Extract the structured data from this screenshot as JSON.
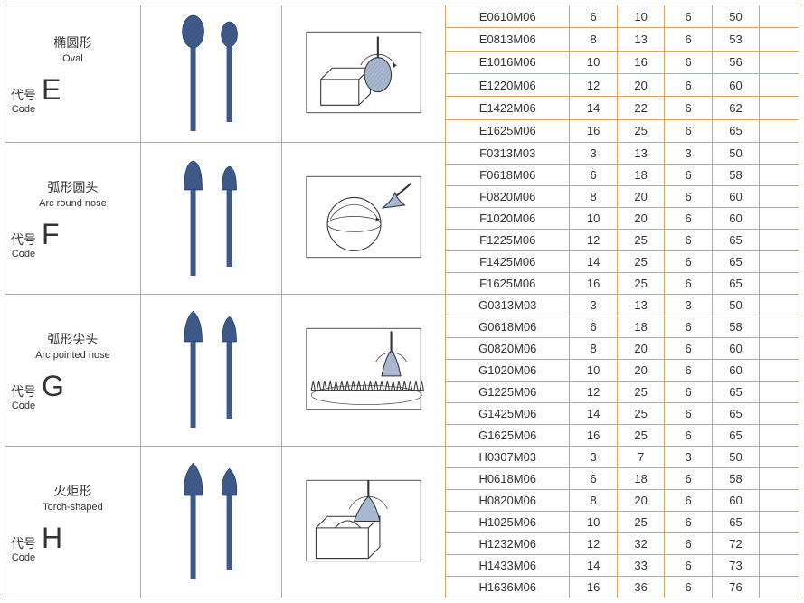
{
  "groups": [
    {
      "cn_name": "椭圆形",
      "en_name": "Oval",
      "code_label_cn": "代号",
      "code_label_en": "Code",
      "code": "E",
      "shape": "oval",
      "diagram": "block-rotate",
      "rows": [
        {
          "model": "E0610M06",
          "c1": "6",
          "c2": "10",
          "c3": "6",
          "c4": "50"
        },
        {
          "model": "E0813M06",
          "c1": "8",
          "c2": "13",
          "c3": "6",
          "c4": "53"
        },
        {
          "model": "E1016M06",
          "c1": "10",
          "c2": "16",
          "c3": "6",
          "c4": "56"
        },
        {
          "model": "E1220M06",
          "c1": "12",
          "c2": "20",
          "c3": "6",
          "c4": "60"
        },
        {
          "model": "E1422M06",
          "c1": "14",
          "c2": "22",
          "c3": "6",
          "c4": "62"
        },
        {
          "model": "E1625M06",
          "c1": "16",
          "c2": "25",
          "c3": "6",
          "c4": "65"
        }
      ]
    },
    {
      "cn_name": "弧形圆头",
      "en_name": "Arc round nose",
      "code_label_cn": "代号",
      "code_label_en": "Code",
      "code": "F",
      "shape": "arc-round",
      "diagram": "sphere",
      "rows": [
        {
          "model": "F0313M03",
          "c1": "3",
          "c2": "13",
          "c3": "3",
          "c4": "50"
        },
        {
          "model": "F0618M06",
          "c1": "6",
          "c2": "18",
          "c3": "6",
          "c4": "58"
        },
        {
          "model": "F0820M06",
          "c1": "8",
          "c2": "20",
          "c3": "6",
          "c4": "60"
        },
        {
          "model": "F1020M06",
          "c1": "10",
          "c2": "20",
          "c3": "6",
          "c4": "60"
        },
        {
          "model": "F1225M06",
          "c1": "12",
          "c2": "25",
          "c3": "6",
          "c4": "65"
        },
        {
          "model": "F1425M06",
          "c1": "14",
          "c2": "25",
          "c3": "6",
          "c4": "65"
        },
        {
          "model": "F1625M06",
          "c1": "16",
          "c2": "25",
          "c3": "6",
          "c4": "65"
        }
      ]
    },
    {
      "cn_name": "弧形尖头",
      "en_name": "Arc pointed nose",
      "code_label_cn": "代号",
      "code_label_en": "Code",
      "code": "G",
      "shape": "arc-pointed",
      "diagram": "gear",
      "rows": [
        {
          "model": "G0313M03",
          "c1": "3",
          "c2": "13",
          "c3": "3",
          "c4": "50"
        },
        {
          "model": "G0618M06",
          "c1": "6",
          "c2": "18",
          "c3": "6",
          "c4": "58"
        },
        {
          "model": "G0820M06",
          "c1": "8",
          "c2": "20",
          "c3": "6",
          "c4": "60"
        },
        {
          "model": "G1020M06",
          "c1": "10",
          "c2": "20",
          "c3": "6",
          "c4": "60"
        },
        {
          "model": "G1225M06",
          "c1": "12",
          "c2": "25",
          "c3": "6",
          "c4": "65"
        },
        {
          "model": "G1425M06",
          "c1": "14",
          "c2": "25",
          "c3": "6",
          "c4": "65"
        },
        {
          "model": "G1625M06",
          "c1": "16",
          "c2": "25",
          "c3": "6",
          "c4": "65"
        }
      ]
    },
    {
      "cn_name": "火炬形",
      "en_name": "Torch-shaped",
      "code_label_cn": "代号",
      "code_label_en": "Code",
      "code": "H",
      "shape": "torch",
      "diagram": "block-groove",
      "rows": [
        {
          "model": "H0307M03",
          "c1": "3",
          "c2": "7",
          "c3": "3",
          "c4": "50"
        },
        {
          "model": "H0618M06",
          "c1": "6",
          "c2": "18",
          "c3": "6",
          "c4": "58"
        },
        {
          "model": "H0820M06",
          "c1": "8",
          "c2": "20",
          "c3": "6",
          "c4": "60"
        },
        {
          "model": "H1025M06",
          "c1": "10",
          "c2": "25",
          "c3": "6",
          "c4": "65"
        },
        {
          "model": "H1232M06",
          "c1": "12",
          "c2": "32",
          "c3": "6",
          "c4": "72"
        },
        {
          "model": "H1433M06",
          "c1": "14",
          "c2": "33",
          "c3": "6",
          "c4": "73"
        },
        {
          "model": "H1636M06",
          "c1": "16",
          "c2": "36",
          "c3": "6",
          "c4": "76"
        }
      ]
    }
  ],
  "colors": {
    "border": "#d4a860",
    "bit_fill": "#3d5a8a",
    "bit_stroke": "#1a2f4f",
    "diagram_stroke": "#333333",
    "bg": "#ffffff"
  }
}
